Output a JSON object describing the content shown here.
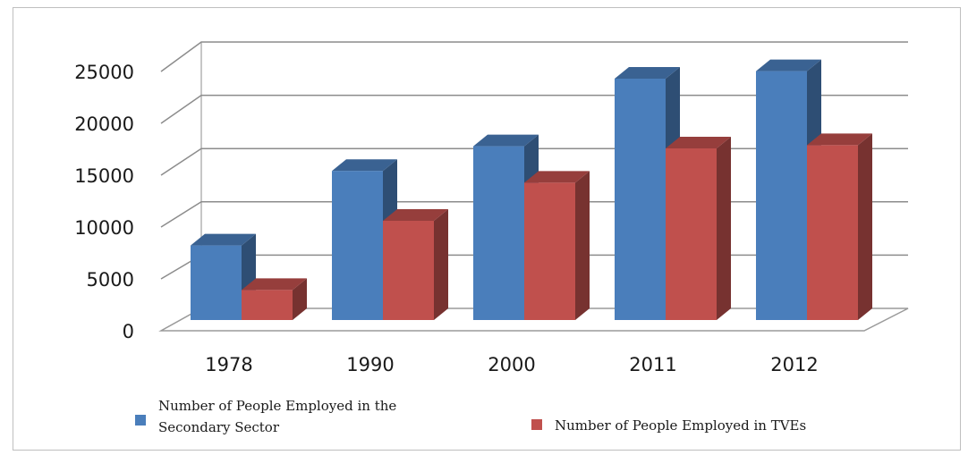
{
  "chart_data": {
    "type": "bar",
    "categories": [
      "1978",
      "1990",
      "2000",
      "2011",
      "2012"
    ],
    "series": [
      {
        "name": "Number of People Employed in the Secondary Sector",
        "color": "#4a7ebb",
        "values": [
          6950,
          13900,
          16200,
          22500,
          23200
        ]
      },
      {
        "name": "Number of People Employed in TVEs",
        "color": "#c0504d",
        "values": [
          2800,
          9250,
          12800,
          16000,
          16300
        ]
      }
    ],
    "y_ticks": [
      "0",
      "5000",
      "10000",
      "15000",
      "20000",
      "25000"
    ],
    "ylim": [
      0,
      25000
    ],
    "grid": true,
    "legend_position": "bottom",
    "legend_lines": [
      [
        "Number of People Employed in the",
        "Secondary Sector"
      ],
      [
        "Number of People Employed in TVEs"
      ]
    ]
  }
}
